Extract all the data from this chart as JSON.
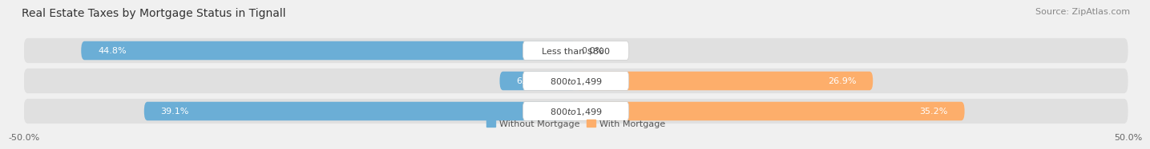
{
  "title": "Real Estate Taxes by Mortgage Status in Tignall",
  "source": "Source: ZipAtlas.com",
  "rows": [
    {
      "label": "Less than $800",
      "without_mortgage": 44.8,
      "with_mortgage": 0.0
    },
    {
      "label": "$800 to $1,499",
      "without_mortgage": 6.9,
      "with_mortgage": 26.9
    },
    {
      "label": "$800 to $1,499",
      "without_mortgage": 39.1,
      "with_mortgage": 35.2
    }
  ],
  "color_without": "#6BAED6",
  "color_with": "#FDAE6B",
  "color_without_light": "#9ECAE1",
  "xlim": [
    -50,
    50
  ],
  "xtick_vals": [
    -50,
    50
  ],
  "xtick_labels": [
    "-50.0%",
    "50.0%"
  ],
  "bar_height": 0.62,
  "background_color": "#F0F0F0",
  "row_bg_color": "#E0E0E0",
  "title_fontsize": 10,
  "source_fontsize": 8,
  "label_fontsize": 8,
  "value_fontsize": 8,
  "legend_fontsize": 8
}
